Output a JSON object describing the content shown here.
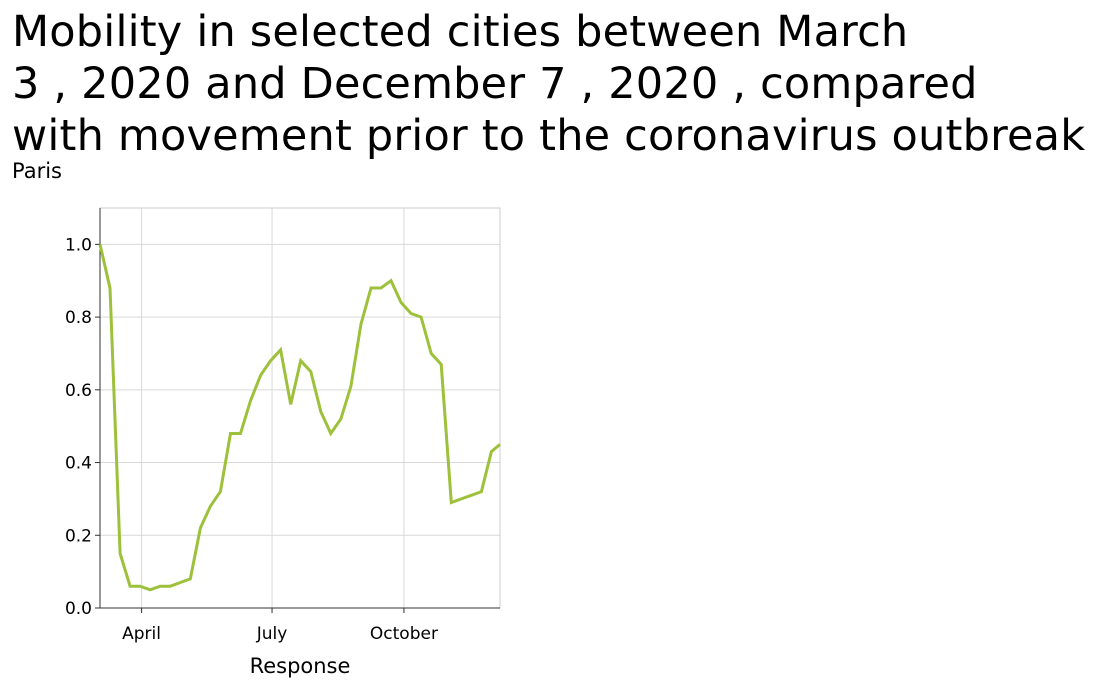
{
  "title_lines": [
    "Mobility in selected cities between March",
    "3 , 2020 and December 7 , 2020 , compared",
    "with movement prior to the coronavirus outbreak"
  ],
  "subtitle": "Paris",
  "chart_data": {
    "type": "line",
    "title": "Mobility in selected cities between March 3 , 2020 and December 7 , 2020 , compared with movement prior to the coronavirus outbreak",
    "subtitle": "Paris",
    "xlabel": "Response",
    "ylabel": "",
    "xlim": [
      "2020-03-03",
      "2020-12-07"
    ],
    "ylim": [
      0,
      1.1
    ],
    "grid": true,
    "legend": "none",
    "line_color": "#9dc13a",
    "x_ticks": [
      {
        "date": "2020-04-01",
        "label": "April"
      },
      {
        "date": "2020-07-01",
        "label": "July"
      },
      {
        "date": "2020-10-01",
        "label": "October"
      }
    ],
    "y_ticks": [
      0.0,
      0.2,
      0.4,
      0.6,
      0.8,
      1.0
    ],
    "y_tick_labels": [
      "0.0",
      "0.2",
      "0.4",
      "0.6",
      "0.8",
      "1.0"
    ],
    "series": [
      {
        "x": [
          "2020-03-03",
          "2020-03-10",
          "2020-03-17",
          "2020-03-24",
          "2020-03-31",
          "2020-04-07",
          "2020-04-14",
          "2020-04-21",
          "2020-04-28",
          "2020-05-05",
          "2020-05-12",
          "2020-05-19",
          "2020-05-26",
          "2020-06-02",
          "2020-06-09",
          "2020-06-16",
          "2020-06-23",
          "2020-06-30",
          "2020-07-07",
          "2020-07-14",
          "2020-07-21",
          "2020-07-28",
          "2020-08-04",
          "2020-08-11",
          "2020-08-18",
          "2020-08-25",
          "2020-09-01",
          "2020-09-08",
          "2020-09-15",
          "2020-09-22",
          "2020-09-29",
          "2020-10-06",
          "2020-10-13",
          "2020-10-20",
          "2020-10-27",
          "2020-11-03",
          "2020-11-10",
          "2020-11-17",
          "2020-11-24",
          "2020-12-01",
          "2020-12-07"
        ],
        "y": [
          1.0,
          0.88,
          0.15,
          0.06,
          0.06,
          0.05,
          0.06,
          0.06,
          0.07,
          0.08,
          0.22,
          0.28,
          0.32,
          0.48,
          0.48,
          0.57,
          0.64,
          0.68,
          0.71,
          0.56,
          0.68,
          0.65,
          0.54,
          0.48,
          0.52,
          0.61,
          0.78,
          0.88,
          0.88,
          0.9,
          0.84,
          0.81,
          0.8,
          0.7,
          0.67,
          0.29,
          0.3,
          0.31,
          0.32,
          0.43,
          0.45
        ]
      }
    ]
  }
}
